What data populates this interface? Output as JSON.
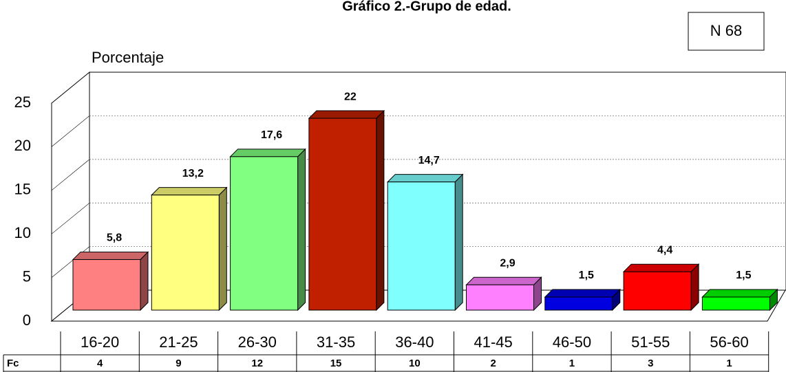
{
  "chart_data": {
    "type": "bar3d",
    "title": "Gráfico 2.-Grupo de edad.",
    "note": "N 68",
    "ylabel": "Porcentaje",
    "categories": [
      "16-20",
      "21-25",
      "26-30",
      "31-35",
      "36-40",
      "41-45",
      "46-50",
      "51-55",
      "56-60"
    ],
    "values": [
      5.8,
      13.2,
      17.6,
      22,
      14.7,
      2.9,
      1.5,
      4.4,
      1.5
    ],
    "value_labels": [
      "5,8",
      "13,2",
      "17,6",
      "22",
      "14,7",
      "2,9",
      "1,5",
      "4,4",
      "1,5"
    ],
    "colors": [
      "#ff8080",
      "#ffff80",
      "#80ff80",
      "#c02000",
      "#80ffff",
      "#ff80ff",
      "#0000e0",
      "#ff0000",
      "#00ff00"
    ],
    "ylim": [
      0,
      25
    ],
    "yticks": [
      0,
      5,
      10,
      15,
      20,
      25
    ],
    "grid": true,
    "table": {
      "row_label": "Fc",
      "values": [
        4,
        9,
        12,
        15,
        10,
        2,
        1,
        3,
        1
      ]
    }
  }
}
